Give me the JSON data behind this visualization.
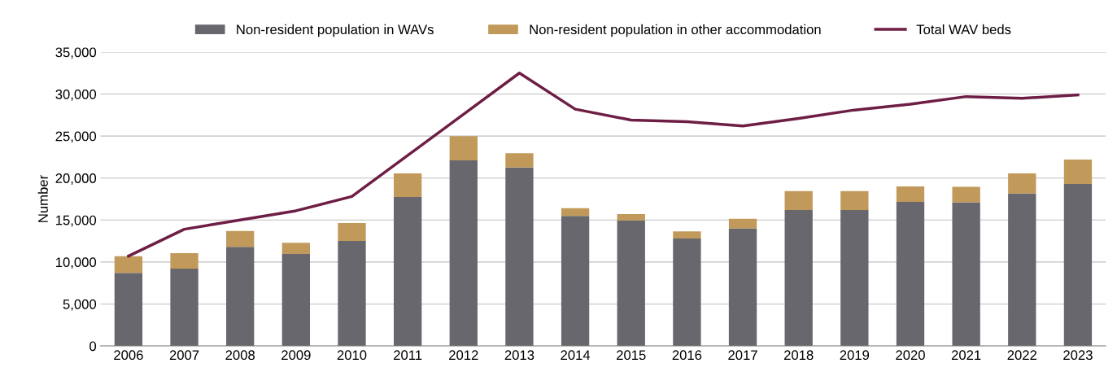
{
  "chart_data": {
    "type": "bar",
    "stacked": true,
    "ylabel": "Number",
    "categories": [
      "2006",
      "2007",
      "2008",
      "2009",
      "2010",
      "2011",
      "2012",
      "2013",
      "2014",
      "2015",
      "2016",
      "2017",
      "2018",
      "2019",
      "2020",
      "2021",
      "2022",
      "2023"
    ],
    "series": [
      {
        "name": "Non-resident population in WAVs",
        "color": "#67676d",
        "values": [
          8700,
          9200,
          11800,
          10950,
          12500,
          17750,
          22100,
          21250,
          15500,
          14950,
          12800,
          14000,
          16200,
          16200,
          17150,
          17100,
          18150,
          19300
        ]
      },
      {
        "name": "Non-resident population in other accommodation",
        "color": "#c19a5b",
        "values": [
          2000,
          1850,
          1900,
          1350,
          2150,
          2800,
          2900,
          1700,
          900,
          750,
          850,
          1150,
          2250,
          2250,
          1850,
          1850,
          2400,
          2900
        ]
      },
      {
        "name": "Total WAV beds",
        "type": "line",
        "color": "#6e1e45",
        "values": [
          10700,
          13900,
          15000,
          16100,
          17800,
          22700,
          27600,
          32500,
          28200,
          26900,
          26700,
          26200,
          27100,
          28100,
          28800,
          29700,
          29500,
          29900
        ]
      }
    ],
    "ylim": [
      0,
      35000
    ],
    "yticks": [
      {
        "value": 0,
        "label": "0"
      },
      {
        "value": 5000,
        "label": "5,000"
      },
      {
        "value": 10000,
        "label": "10,000"
      },
      {
        "value": 15000,
        "label": "15,000"
      },
      {
        "value": 20000,
        "label": "20,000"
      },
      {
        "value": 25000,
        "label": "25,000"
      },
      {
        "value": 30000,
        "label": "30,000"
      },
      {
        "value": 35000,
        "label": "35,000"
      }
    ],
    "grid": "y",
    "legend": "top",
    "marker": "none"
  }
}
